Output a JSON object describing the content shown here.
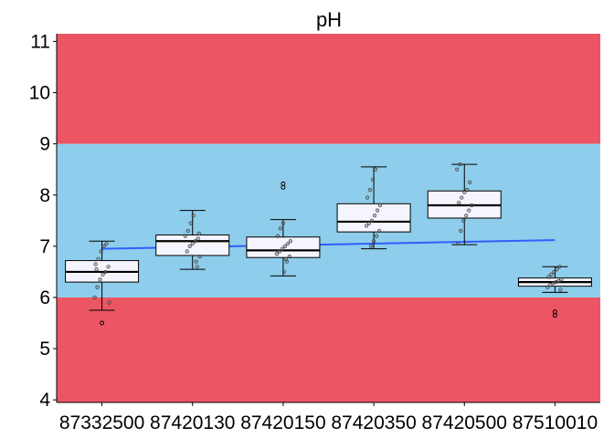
{
  "chart_data": {
    "type": "box",
    "title": "pH",
    "xlabel": "",
    "ylabel": "",
    "ylim": [
      3.95,
      11.15
    ],
    "yticks": [
      "4",
      "5",
      "6",
      "7",
      "8",
      "9",
      "10",
      "11"
    ],
    "bands": [
      {
        "from": 3.95,
        "to": 6.0,
        "color": "#ec5664"
      },
      {
        "from": 6.0,
        "to": 9.0,
        "color": "#8ecdeb"
      },
      {
        "from": 9.0,
        "to": 11.15,
        "color": "#ec5664"
      }
    ],
    "categories": [
      "87332500",
      "87420130",
      "87420150",
      "87420350",
      "87420500",
      "87510010"
    ],
    "boxes": [
      {
        "q1": 6.3,
        "median": 6.5,
        "q3": 6.72,
        "whisker_low": 5.75,
        "whisker_high": 7.1,
        "outliers": [
          5.5
        ],
        "points": [
          6.0,
          6.2,
          6.35,
          6.45,
          6.5,
          6.6,
          6.65,
          6.75,
          6.9,
          7.0,
          7.05,
          5.9,
          6.55
        ]
      },
      {
        "q1": 6.82,
        "median": 7.1,
        "q3": 7.22,
        "whisker_low": 6.55,
        "whisker_high": 7.7,
        "outliers": [],
        "points": [
          6.6,
          6.8,
          6.9,
          7.0,
          7.05,
          7.1,
          7.15,
          7.2,
          7.3,
          7.45,
          7.6,
          6.7,
          7.25
        ]
      },
      {
        "q1": 6.78,
        "median": 6.92,
        "q3": 7.18,
        "whisker_low": 6.42,
        "whisker_high": 7.52,
        "outliers": [
          8.15,
          8.22
        ],
        "points": [
          6.5,
          6.7,
          6.8,
          6.85,
          6.9,
          6.95,
          7.0,
          7.05,
          7.1,
          7.2,
          7.35,
          7.45,
          6.75
        ]
      },
      {
        "q1": 7.28,
        "median": 7.48,
        "q3": 7.83,
        "whisker_low": 6.95,
        "whisker_high": 8.55,
        "outliers": [],
        "points": [
          7.0,
          7.1,
          7.2,
          7.3,
          7.4,
          7.45,
          7.5,
          7.6,
          7.7,
          7.8,
          7.95,
          8.1,
          8.3,
          8.5
        ]
      },
      {
        "q1": 7.55,
        "median": 7.8,
        "q3": 8.08,
        "whisker_low": 7.03,
        "whisker_high": 8.6,
        "outliers": [],
        "points": [
          7.05,
          7.3,
          7.5,
          7.6,
          7.7,
          7.8,
          7.85,
          7.95,
          8.05,
          8.1,
          8.25,
          8.5,
          8.6
        ]
      },
      {
        "q1": 6.22,
        "median": 6.3,
        "q3": 6.38,
        "whisker_low": 6.1,
        "whisker_high": 6.6,
        "outliers": [
          5.65,
          5.72
        ],
        "points": [
          6.15,
          6.2,
          6.25,
          6.28,
          6.3,
          6.32,
          6.35,
          6.4,
          6.45,
          6.5,
          6.55,
          6.6
        ]
      }
    ],
    "trend_line": {
      "color": "#2f5fff",
      "from": {
        "category": "87332500",
        "y": 6.95
      },
      "to": {
        "category": "87510010",
        "y": 7.12
      }
    },
    "box_fill": "#f5f5ff",
    "grid": false,
    "legend": "none"
  }
}
